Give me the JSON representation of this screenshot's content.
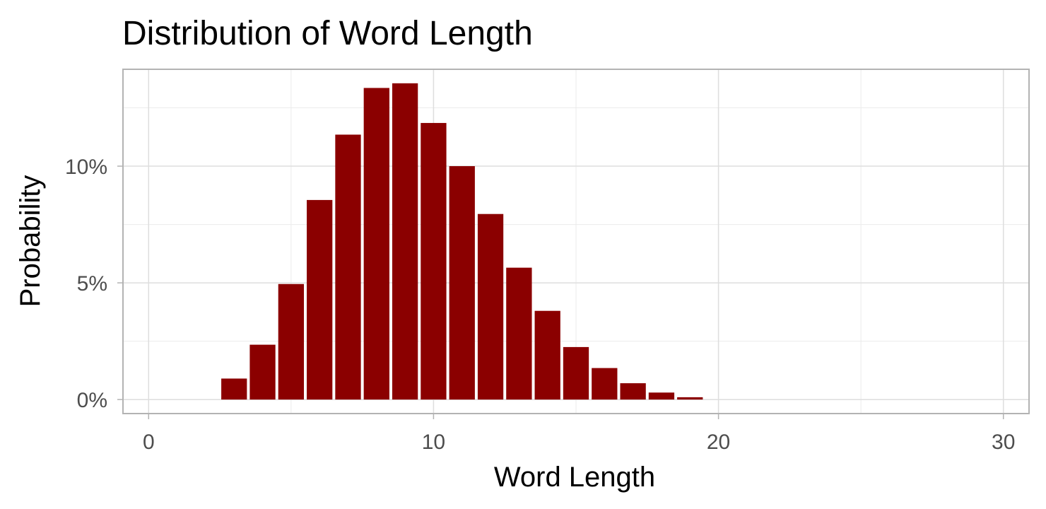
{
  "chart_data": {
    "type": "bar",
    "title": "Distribution of Word Length",
    "xlabel": "Word Length",
    "ylabel": "Probability",
    "x": [
      0,
      1,
      2,
      3,
      4,
      5,
      6,
      7,
      8,
      9,
      10,
      11,
      12,
      13,
      14,
      15,
      16,
      17,
      18,
      19,
      20,
      21,
      22,
      23,
      24,
      25,
      26,
      27,
      28,
      29
    ],
    "values": [
      0,
      0,
      0,
      0.009,
      0.0235,
      0.0495,
      0.0855,
      0.1135,
      0.1335,
      0.1355,
      0.1185,
      0.1,
      0.0795,
      0.0565,
      0.038,
      0.0225,
      0.0135,
      0.007,
      0.003,
      0.001,
      0,
      0,
      0,
      0,
      0,
      0,
      0,
      0,
      0,
      0
    ],
    "xlim": [
      -0.9,
      30.9
    ],
    "ylim": [
      -0.006,
      0.1415
    ],
    "x_ticks": [
      0,
      10,
      20,
      30
    ],
    "x_tick_labels": [
      "0",
      "10",
      "20",
      "30"
    ],
    "y_ticks": [
      0,
      0.05,
      0.1
    ],
    "y_tick_labels": [
      "0%",
      "5%",
      "10%"
    ],
    "bar_color": "#8b0000",
    "grid": true,
    "panel_border": true,
    "legend": "none"
  }
}
